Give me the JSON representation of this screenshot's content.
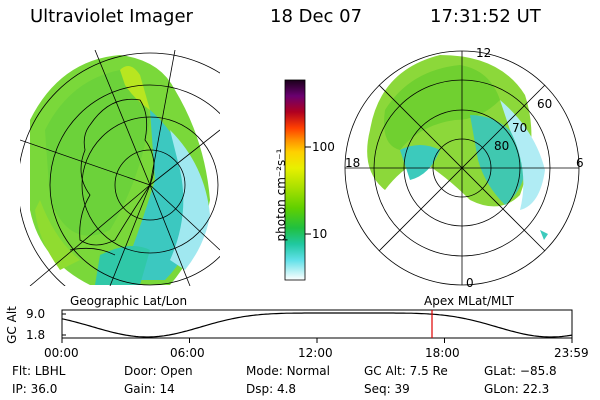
{
  "header": {
    "instrument": "Ultraviolet Imager",
    "date": "18 Dec 07",
    "time": "17:31:52 UT"
  },
  "colorbar": {
    "unit_label": "photon cm⁻²s⁻¹",
    "ticks": [
      "100",
      "10"
    ],
    "colors": [
      "#1a001a",
      "#3b0040",
      "#6a0070",
      "#8a0050",
      "#b00020",
      "#e00000",
      "#ff4000",
      "#ff9000",
      "#ffd000",
      "#e8f000",
      "#a8e000",
      "#60d000",
      "#20c040",
      "#20c8a0",
      "#60e0e8",
      "#b0f0f8",
      "#ffffff"
    ]
  },
  "left_map": {
    "caption": "Geographic Lat/Lon"
  },
  "right_map": {
    "caption": "Apex MLat/MLT",
    "lat_labels": [
      "60",
      "70",
      "80"
    ],
    "mlt_labels": {
      "top": "12",
      "left": "18",
      "right": "6",
      "bottom": "0"
    }
  },
  "altitude_plot": {
    "ylabel": "GC Alt",
    "y_ticks": [
      "9.0",
      "1.8"
    ],
    "x_ticks": [
      "00:00",
      "06:00",
      "12:00",
      "18:00",
      "23:59"
    ],
    "marker_time": "17:31:52"
  },
  "status": {
    "row1": [
      {
        "key": "Flt:",
        "value": "LBHL"
      },
      {
        "key": "Door:",
        "value": "Open"
      },
      {
        "key": "Mode:",
        "value": "Normal"
      },
      {
        "key": "GC Alt:",
        "value": "7.5 Re"
      },
      {
        "key": "GLat:",
        "value": "−85.8"
      }
    ],
    "row2": [
      {
        "key": "IP:",
        "value": "36.0"
      },
      {
        "key": "Gain:",
        "value": "14"
      },
      {
        "key": "Dsp:",
        "value": "4.8"
      },
      {
        "key": "Seq:",
        "value": "39"
      },
      {
        "key": "GLon:",
        "value": "22.3"
      }
    ]
  }
}
